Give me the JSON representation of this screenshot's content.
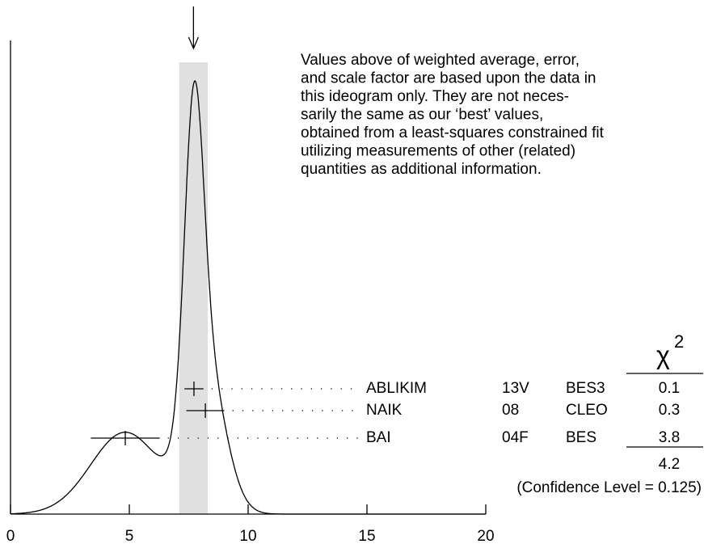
{
  "chart_data": {
    "type": "ideogram",
    "xlim": [
      0,
      20
    ],
    "xticks": [
      0,
      5,
      10,
      15,
      20
    ],
    "weighted_average": 7.7,
    "weighted_error": 0.6,
    "note": [
      "Values above of weighted average, error,",
      "and scale factor are based upon the data in",
      "this ideogram only.  They are not neces-",
      "sarily the same as our ‘best’ values,",
      "obtained from a least-squares constrained fit",
      "utilizing measurements of other (related)",
      "quantities as additional information."
    ],
    "chi2_symbol": "χ",
    "chi2_exponent": "2",
    "measurements": [
      {
        "name": "ABLIKIM",
        "year": "13V",
        "experiment": "BES3",
        "value": 7.72,
        "error": 0.4,
        "chi2": 0.1
      },
      {
        "name": "NAIK",
        "year": "08",
        "experiment": "CLEO",
        "value": 8.2,
        "error": 0.8,
        "chi2": 0.3
      },
      {
        "name": "BAI",
        "year": "04F",
        "experiment": "BES",
        "value": 4.83,
        "error": 1.45,
        "chi2": 3.8
      }
    ],
    "chi2_total": 4.2,
    "confidence_level": "(Confidence Level = 0.125)"
  }
}
